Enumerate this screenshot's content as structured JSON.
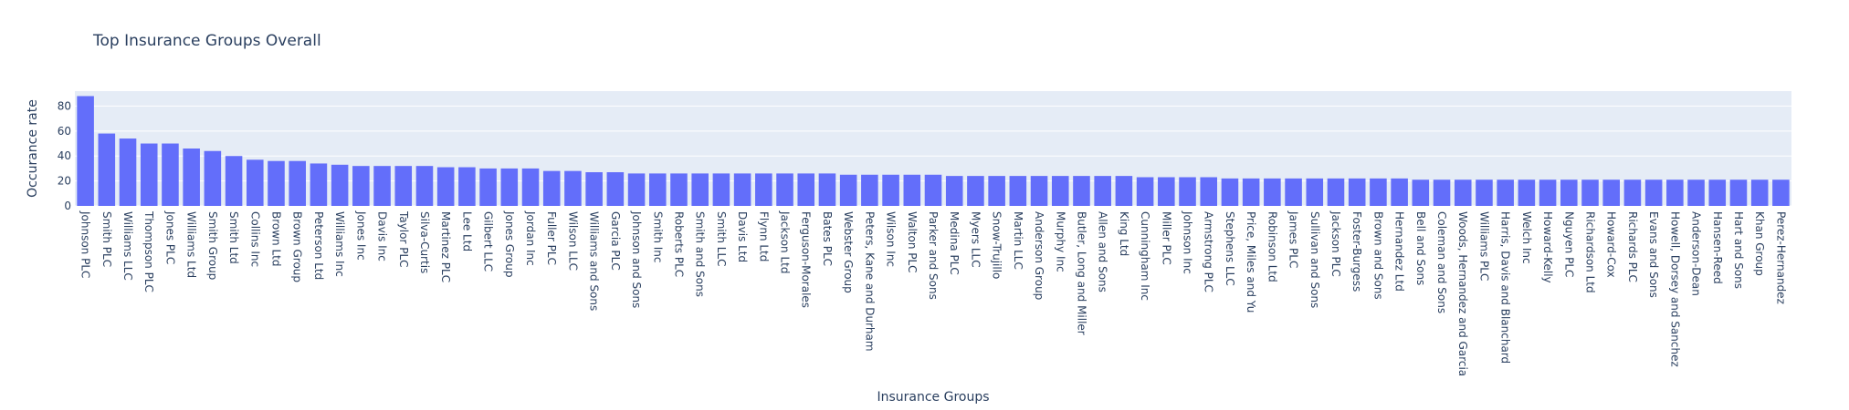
{
  "chart_data": {
    "type": "bar",
    "title": "Top Insurance Groups Overall",
    "xlabel": "Insurance Groups",
    "ylabel": "Occurance rate",
    "ylim": [
      0,
      92
    ],
    "yticks": [
      0,
      20,
      40,
      60,
      80
    ],
    "grid": true,
    "legend": "none",
    "colors": {
      "bar": "#636efa",
      "plot_bg": "#e5ecf6",
      "text": "#2a3f5f"
    },
    "categories": [
      "Johnson PLC",
      "Smith PLC",
      "Williams LLC",
      "Thompson PLC",
      "Jones PLC",
      "Williams Ltd",
      "Smith Group",
      "Smith Ltd",
      "Collins Inc",
      "Brown Ltd",
      "Brown Group",
      "Peterson Ltd",
      "Williams Inc",
      "Jones Inc",
      "Davis Inc",
      "Taylor PLC",
      "Silva-Curtis",
      "Martinez PLC",
      "Lee Ltd",
      "Gilbert LLC",
      "Jones Group",
      "Jordan Inc",
      "Fuller PLC",
      "Wilson LLC",
      "Williams and Sons",
      "Garcia PLC",
      "Johnson and Sons",
      "Smith Inc",
      "Roberts PLC",
      "Smith and Sons",
      "Smith LLC",
      "Davis Ltd",
      "Flynn Ltd",
      "Jackson Ltd",
      "Ferguson-Morales",
      "Bates PLC",
      "Webster Group",
      "Peters, Kane and Durham",
      "Wilson Inc",
      "Walton PLC",
      "Parker and Sons",
      "Medina PLC",
      "Myers LLC",
      "Snow-Trujillo",
      "Martin LLC",
      "Anderson Group",
      "Murphy Inc",
      "Butler, Long and Miller",
      "Allen and Sons",
      "King Ltd",
      "Cunningham Inc",
      "Miller PLC",
      "Johnson Inc",
      "Armstrong PLC",
      "Stephens LLC",
      "Price, Miles and Yu",
      "Robinson Ltd",
      "James PLC",
      "Sullivan and Sons",
      "Jackson PLC",
      "Foster-Burgess",
      "Brown and Sons",
      "Hernandez Ltd",
      "Bell and Sons",
      "Coleman and Sons",
      "Woods, Hernandez and Garcia",
      "Williams PLC",
      "Harris, Davis and Blanchard",
      "Welch Inc",
      "Howard-Kelly",
      "Nguyen PLC",
      "Richardson Ltd",
      "Howard-Cox",
      "Richards PLC",
      "Evans and Sons",
      "Howell, Dorsey and Sanchez",
      "Anderson-Dean",
      "Hansen-Reed",
      "Hart and Sons",
      "Khan Group",
      "Perez-Hernandez"
    ],
    "values": [
      88,
      58,
      54,
      50,
      50,
      46,
      44,
      40,
      37,
      36,
      36,
      34,
      33,
      32,
      32,
      32,
      32,
      31,
      31,
      30,
      30,
      30,
      28,
      28,
      27,
      27,
      26,
      26,
      26,
      26,
      26,
      26,
      26,
      26,
      26,
      26,
      25,
      25,
      25,
      25,
      25,
      24,
      24,
      24,
      24,
      24,
      24,
      24,
      24,
      24,
      23,
      23,
      23,
      23,
      22,
      22,
      22,
      22,
      22,
      22,
      22,
      22,
      22,
      21,
      21,
      21,
      21,
      21,
      21,
      21,
      21,
      21,
      21,
      21,
      21,
      21,
      21,
      21,
      21,
      21,
      21
    ]
  }
}
